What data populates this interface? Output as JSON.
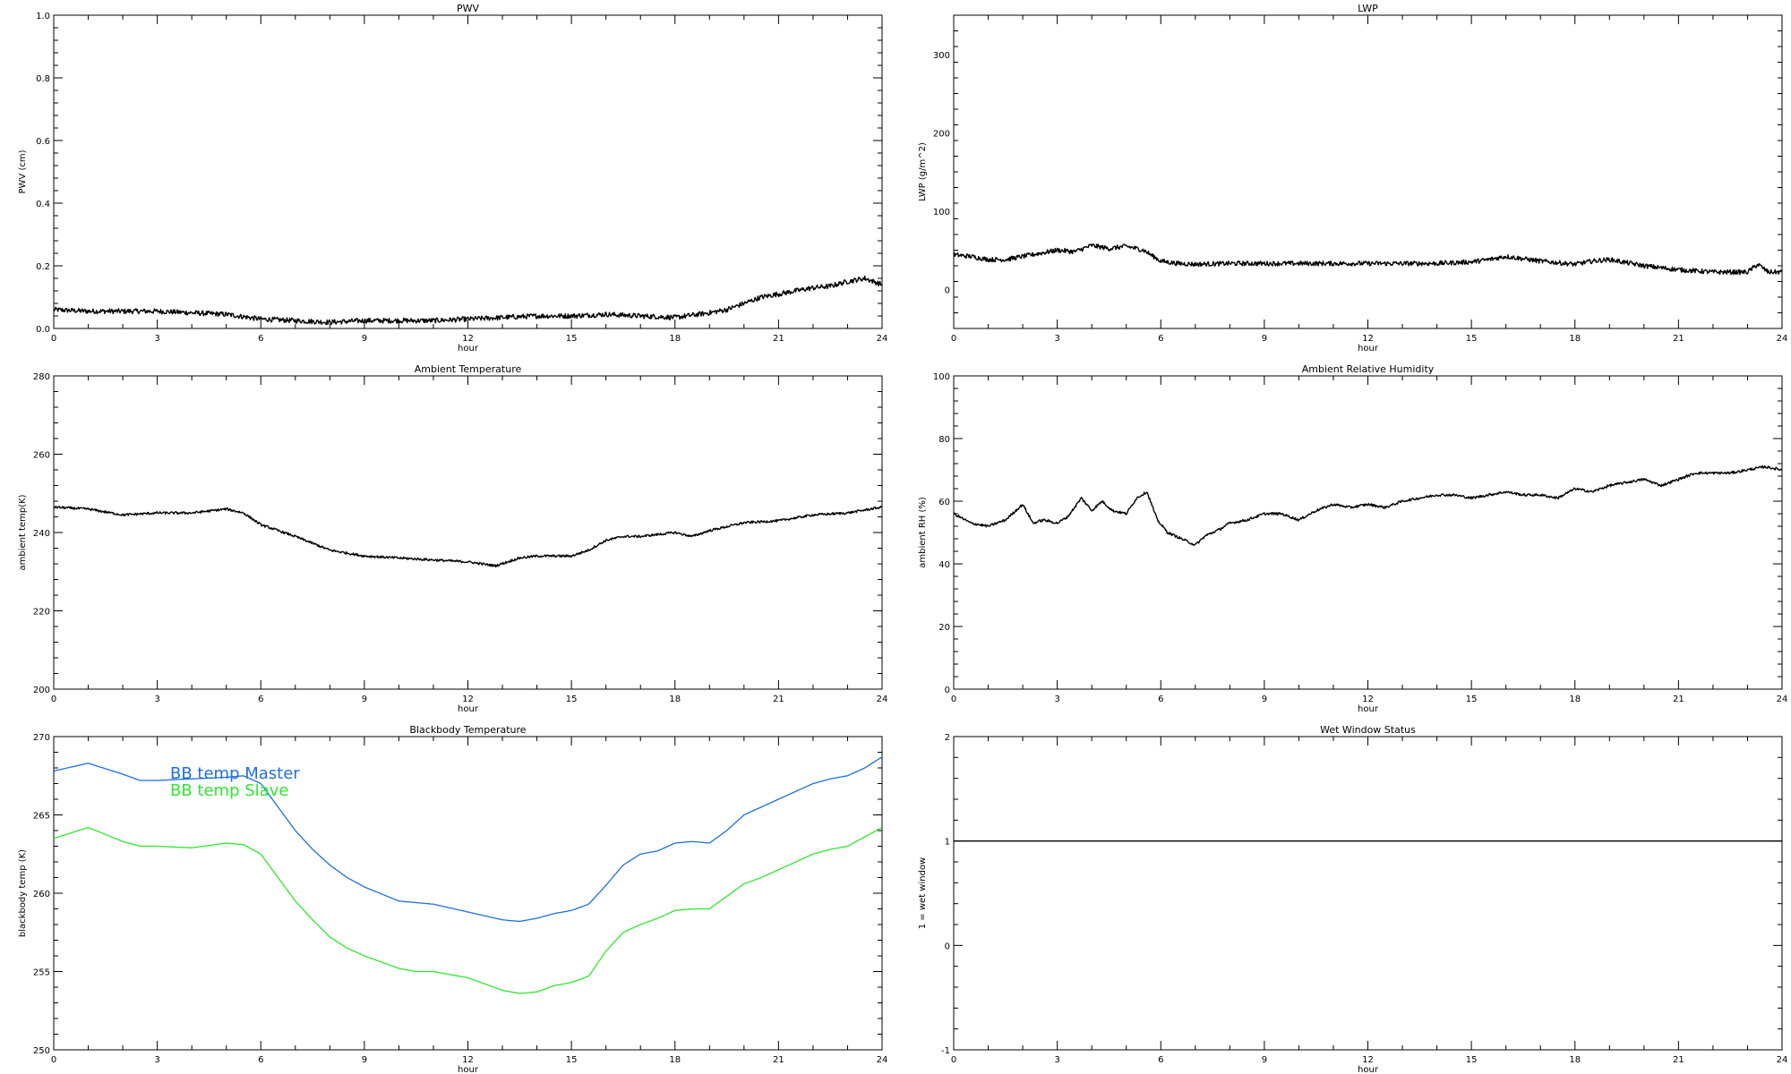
{
  "colors": {
    "axis": "#000000",
    "line": "#000000",
    "master": "#1f6fe0",
    "slave": "#2fe62f"
  },
  "chart_data": [
    {
      "id": "pwv",
      "type": "line",
      "title": "PWV",
      "xlabel": "hour",
      "ylabel": "PWV (cm)",
      "xlim": [
        0,
        24
      ],
      "ylim": [
        0,
        1.0
      ],
      "xticks": [
        0,
        3,
        6,
        9,
        12,
        15,
        18,
        21,
        24
      ],
      "yticks": [
        0.0,
        0.2,
        0.4,
        0.6,
        0.8,
        1.0
      ],
      "ytick_labels": [
        "0.0",
        "0.2",
        "0.4",
        "0.6",
        "0.8",
        "1.0"
      ],
      "noise": 0.008,
      "series": [
        {
          "color_key": "line",
          "x": [
            0,
            1,
            2,
            3,
            4,
            5,
            6,
            7,
            8,
            9,
            10,
            11,
            12,
            13,
            14,
            15,
            16,
            17,
            18,
            19,
            19.5,
            20,
            20.5,
            21,
            21.5,
            22,
            22.5,
            23,
            23.5,
            24
          ],
          "y": [
            0.06,
            0.055,
            0.055,
            0.055,
            0.05,
            0.045,
            0.03,
            0.025,
            0.02,
            0.025,
            0.025,
            0.025,
            0.03,
            0.035,
            0.04,
            0.04,
            0.045,
            0.04,
            0.035,
            0.05,
            0.06,
            0.08,
            0.1,
            0.11,
            0.12,
            0.13,
            0.135,
            0.15,
            0.16,
            0.14
          ]
        }
      ]
    },
    {
      "id": "lwp",
      "type": "line",
      "title": "LWP",
      "xlabel": "hour",
      "ylabel": "LWP (g/m^2)",
      "xlim": [
        0,
        24
      ],
      "ylim": [
        -50,
        350
      ],
      "xticks": [
        0,
        3,
        6,
        9,
        12,
        15,
        18,
        21,
        24
      ],
      "yticks": [
        0,
        100,
        200,
        300
      ],
      "ytick_labels": [
        "0",
        "100",
        "200",
        "300"
      ],
      "noise": 3,
      "series": [
        {
          "color_key": "line",
          "x": [
            0,
            0.5,
            1,
            1.5,
            2,
            2.5,
            3,
            3.5,
            4,
            4.5,
            5,
            5.5,
            6,
            6.5,
            7,
            8,
            9,
            10,
            11,
            12,
            13,
            14,
            15,
            15.5,
            16,
            17,
            18,
            18.5,
            19,
            20,
            21,
            22,
            23,
            23.3,
            23.6,
            24
          ],
          "y": [
            44,
            42,
            38,
            38,
            42,
            46,
            50,
            48,
            56,
            52,
            55,
            50,
            36,
            33,
            32,
            33,
            33,
            33,
            33,
            33,
            33,
            33,
            35,
            38,
            42,
            36,
            32,
            36,
            38,
            30,
            25,
            22,
            22,
            32,
            22,
            22
          ]
        }
      ]
    },
    {
      "id": "ambient_temp",
      "type": "line",
      "title": "Ambient Temperature",
      "xlabel": "hour",
      "ylabel": "ambient temp(K)",
      "xlim": [
        0,
        24
      ],
      "ylim": [
        200,
        280
      ],
      "xticks": [
        0,
        3,
        6,
        9,
        12,
        15,
        18,
        21,
        24
      ],
      "yticks": [
        200,
        220,
        240,
        260,
        280
      ],
      "ytick_labels": [
        "200",
        "220",
        "240",
        "260",
        "280"
      ],
      "noise": 0.3,
      "series": [
        {
          "color_key": "line",
          "x": [
            0,
            1,
            2,
            3,
            4,
            5,
            5.5,
            6,
            7,
            8,
            9,
            10,
            11,
            12,
            12.8,
            13.5,
            14,
            15,
            15.5,
            16,
            16.5,
            17,
            18,
            18.5,
            19,
            20,
            21,
            22,
            23,
            24
          ],
          "y": [
            246.5,
            246,
            244.5,
            245,
            245,
            246,
            245,
            242,
            239,
            235.5,
            234,
            233.5,
            233,
            232.5,
            231.5,
            233.5,
            234,
            234,
            235.5,
            238,
            239,
            239,
            240,
            239,
            240.5,
            242.5,
            243,
            244.5,
            245,
            246.5
          ]
        }
      ]
    },
    {
      "id": "ambient_rh",
      "type": "line",
      "title": "Ambient Relative Humidity",
      "xlabel": "hour",
      "ylabel": "ambient RH (%)",
      "xlim": [
        0,
        24
      ],
      "ylim": [
        0,
        100
      ],
      "xticks": [
        0,
        3,
        6,
        9,
        12,
        15,
        18,
        21,
        24
      ],
      "yticks": [
        0,
        20,
        40,
        60,
        80,
        100
      ],
      "ytick_labels": [
        "0",
        "20",
        "40",
        "60",
        "80",
        "100"
      ],
      "noise": 0.4,
      "series": [
        {
          "color_key": "line",
          "x": [
            0,
            0.5,
            1,
            1.5,
            2,
            2.3,
            2.6,
            3,
            3.3,
            3.7,
            4,
            4.3,
            4.6,
            5,
            5.3,
            5.6,
            5.9,
            6.2,
            6.6,
            7,
            7.3,
            7.7,
            8,
            8.5,
            9,
            9.5,
            10,
            10.5,
            11,
            11.5,
            12,
            12.5,
            13,
            13.5,
            14,
            14.5,
            15,
            15.5,
            16,
            16.5,
            17,
            17.5,
            18,
            18.5,
            19,
            19.5,
            20,
            20.5,
            21,
            21.5,
            22,
            22.5,
            23,
            23.5,
            24
          ],
          "y": [
            56,
            53,
            52,
            54,
            59,
            53,
            54,
            53,
            55,
            61,
            57,
            60,
            57,
            56,
            61,
            63,
            54,
            50,
            48,
            46,
            49,
            51,
            53,
            54,
            56,
            56,
            54,
            57,
            59,
            58,
            59,
            58,
            60,
            61,
            62,
            62,
            61,
            62,
            63,
            62,
            62,
            61,
            64,
            63,
            65,
            66,
            67,
            65,
            67,
            69,
            69,
            69,
            70,
            71,
            70
          ]
        }
      ]
    },
    {
      "id": "bb_temp",
      "type": "line",
      "title": "Blackbody Temperature",
      "xlabel": "hour",
      "ylabel": "blackbody temp (K)",
      "xlim": [
        0,
        24
      ],
      "ylim": [
        250,
        270
      ],
      "xticks": [
        0,
        3,
        6,
        9,
        12,
        15,
        18,
        21,
        24
      ],
      "yticks": [
        250,
        255,
        260,
        265,
        270
      ],
      "ytick_labels": [
        "250",
        "255",
        "260",
        "265",
        "270"
      ],
      "noise": 0,
      "legend": "upper-left",
      "series": [
        {
          "name": "BB temp Master",
          "color_key": "master",
          "x": [
            0,
            1,
            2,
            2.5,
            3,
            4,
            5,
            5.5,
            6,
            6.5,
            7,
            7.5,
            8,
            8.5,
            9,
            10,
            10.5,
            11,
            12,
            13,
            13.5,
            14,
            14.5,
            15,
            15.5,
            16,
            16.5,
            17,
            17.5,
            18,
            18.5,
            19,
            19.5,
            20,
            20.5,
            21,
            21.5,
            22,
            22.5,
            23,
            23.5,
            24
          ],
          "y": [
            267.8,
            268.3,
            267.6,
            267.2,
            267.2,
            267.3,
            267.4,
            267.5,
            267.0,
            265.5,
            264.0,
            262.8,
            261.8,
            261.0,
            260.4,
            259.5,
            259.4,
            259.3,
            258.8,
            258.3,
            258.2,
            258.4,
            258.7,
            258.9,
            259.3,
            260.5,
            261.8,
            262.5,
            262.7,
            263.2,
            263.3,
            263.2,
            264.0,
            265.0,
            265.5,
            266.0,
            266.5,
            267.0,
            267.3,
            267.5,
            268.0,
            268.7
          ]
        },
        {
          "name": "BB temp Slave",
          "color_key": "slave",
          "x": [
            0,
            1,
            2,
            2.5,
            3,
            4,
            5,
            5.5,
            6,
            6.5,
            7,
            7.5,
            8,
            8.5,
            9,
            10,
            10.5,
            11,
            12,
            13,
            13.5,
            14,
            14.5,
            15,
            15.5,
            16,
            16.5,
            17,
            17.5,
            18,
            18.5,
            19,
            19.5,
            20,
            20.5,
            21,
            21.5,
            22,
            22.5,
            23,
            23.5,
            24
          ],
          "y": [
            263.5,
            264.2,
            263.3,
            263.0,
            263.0,
            262.9,
            263.2,
            263.1,
            262.5,
            261.0,
            259.5,
            258.3,
            257.2,
            256.5,
            256.0,
            255.2,
            255.0,
            255.0,
            254.6,
            253.8,
            253.6,
            253.7,
            254.1,
            254.3,
            254.7,
            256.3,
            257.5,
            258.0,
            258.4,
            258.9,
            259.0,
            259.0,
            259.8,
            260.6,
            261.0,
            261.5,
            262.0,
            262.5,
            262.8,
            263.0,
            263.6,
            264.2
          ]
        }
      ]
    },
    {
      "id": "wet_window",
      "type": "line",
      "title": "Wet Window Status",
      "xlabel": "hour",
      "ylabel": "1 = wet window",
      "xlim": [
        0,
        24
      ],
      "ylim": [
        -1,
        2
      ],
      "xticks": [
        0,
        3,
        6,
        9,
        12,
        15,
        18,
        21,
        24
      ],
      "yticks": [
        -1,
        0,
        1,
        2
      ],
      "ytick_labels": [
        "-1",
        "0",
        "1",
        "2"
      ],
      "noise": 0,
      "series": [
        {
          "color_key": "line",
          "x": [
            0,
            24
          ],
          "y": [
            1,
            1
          ]
        }
      ]
    }
  ]
}
